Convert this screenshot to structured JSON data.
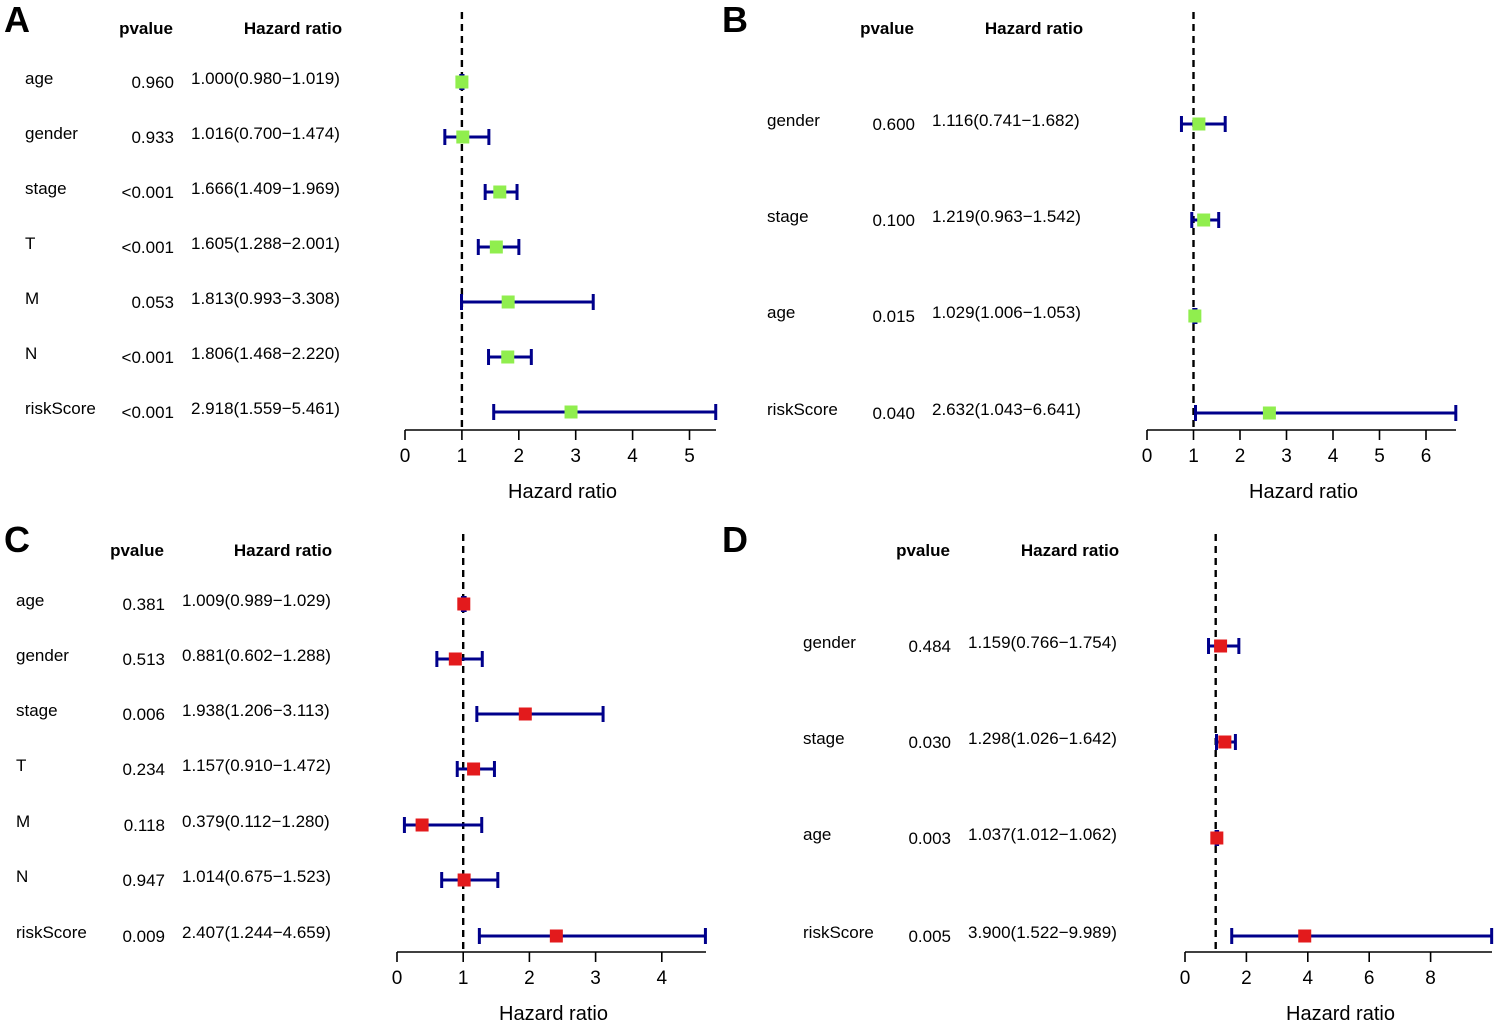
{
  "chart_data": [
    {
      "panel": "A",
      "type": "forest",
      "header_pvalue": "pvalue",
      "header_hr": "Hazard ratio",
      "xlabel": "Hazard ratio",
      "xlim": [
        0,
        5.461
      ],
      "xticks": [
        "0",
        "1",
        "2",
        "3",
        "4",
        "5"
      ],
      "reference_line": 1,
      "marker_color": "#90EE4E",
      "ci_color": "#00008B",
      "rows": [
        {
          "label": "age",
          "pvalue": "0.960",
          "hr_text": "1.000(0.980−1.019)",
          "hr": 1.0,
          "low": 0.98,
          "high": 1.019
        },
        {
          "label": "gender",
          "pvalue": "0.933",
          "hr_text": "1.016(0.700−1.474)",
          "hr": 1.016,
          "low": 0.7,
          "high": 1.474
        },
        {
          "label": "stage",
          "pvalue": "<0.001",
          "hr_text": "1.666(1.409−1.969)",
          "hr": 1.666,
          "low": 1.409,
          "high": 1.969
        },
        {
          "label": "T",
          "pvalue": "<0.001",
          "hr_text": "1.605(1.288−2.001)",
          "hr": 1.605,
          "low": 1.288,
          "high": 2.001
        },
        {
          "label": "M",
          "pvalue": "0.053",
          "hr_text": "1.813(0.993−3.308)",
          "hr": 1.813,
          "low": 0.993,
          "high": 3.308
        },
        {
          "label": "N",
          "pvalue": "<0.001",
          "hr_text": "1.806(1.468−2.220)",
          "hr": 1.806,
          "low": 1.468,
          "high": 2.22
        },
        {
          "label": "riskScore",
          "pvalue": "<0.001",
          "hr_text": "2.918(1.559−5.461)",
          "hr": 2.918,
          "low": 1.559,
          "high": 5.461
        }
      ]
    },
    {
      "panel": "B",
      "type": "forest",
      "header_pvalue": "pvalue",
      "header_hr": "Hazard ratio",
      "xlabel": "Hazard ratio",
      "xlim": [
        0,
        6.641
      ],
      "xticks": [
        "0",
        "1",
        "2",
        "3",
        "4",
        "5",
        "6"
      ],
      "reference_line": 1,
      "marker_color": "#90EE4E",
      "ci_color": "#00008B",
      "rows": [
        {
          "label": "gender",
          "pvalue": "0.600",
          "hr_text": "1.116(0.741−1.682)",
          "hr": 1.116,
          "low": 0.741,
          "high": 1.682
        },
        {
          "label": "stage",
          "pvalue": "0.100",
          "hr_text": "1.219(0.963−1.542)",
          "hr": 1.219,
          "low": 0.963,
          "high": 1.542
        },
        {
          "label": "age",
          "pvalue": "0.015",
          "hr_text": "1.029(1.006−1.053)",
          "hr": 1.029,
          "low": 1.006,
          "high": 1.053
        },
        {
          "label": "riskScore",
          "pvalue": "0.040",
          "hr_text": "2.632(1.043−6.641)",
          "hr": 2.632,
          "low": 1.043,
          "high": 6.641
        }
      ]
    },
    {
      "panel": "C",
      "type": "forest",
      "header_pvalue": "pvalue",
      "header_hr": "Hazard ratio",
      "xlabel": "Hazard ratio",
      "xlim": [
        0,
        4.659
      ],
      "xticks": [
        "0",
        "1",
        "2",
        "3",
        "4"
      ],
      "reference_line": 1,
      "marker_color": "#E31A1C",
      "ci_color": "#00008B",
      "rows": [
        {
          "label": "age",
          "pvalue": "0.381",
          "hr_text": "1.009(0.989−1.029)",
          "hr": 1.009,
          "low": 0.989,
          "high": 1.029
        },
        {
          "label": "gender",
          "pvalue": "0.513",
          "hr_text": "0.881(0.602−1.288)",
          "hr": 0.881,
          "low": 0.602,
          "high": 1.288
        },
        {
          "label": "stage",
          "pvalue": "0.006",
          "hr_text": "1.938(1.206−3.113)",
          "hr": 1.938,
          "low": 1.206,
          "high": 3.113
        },
        {
          "label": "T",
          "pvalue": "0.234",
          "hr_text": "1.157(0.910−1.472)",
          "hr": 1.157,
          "low": 0.91,
          "high": 1.472
        },
        {
          "label": "M",
          "pvalue": "0.118",
          "hr_text": "0.379(0.112−1.280)",
          "hr": 0.379,
          "low": 0.112,
          "high": 1.28
        },
        {
          "label": "N",
          "pvalue": "0.947",
          "hr_text": "1.014(0.675−1.523)",
          "hr": 1.014,
          "low": 0.675,
          "high": 1.523
        },
        {
          "label": "riskScore",
          "pvalue": "0.009",
          "hr_text": "2.407(1.244−4.659)",
          "hr": 2.407,
          "low": 1.244,
          "high": 4.659
        }
      ]
    },
    {
      "panel": "D",
      "type": "forest",
      "header_pvalue": "pvalue",
      "header_hr": "Hazard ratio",
      "xlabel": "Hazard ratio",
      "xlim": [
        0,
        9.989
      ],
      "xticks": [
        "0",
        "2",
        "4",
        "6",
        "8"
      ],
      "reference_line": 1,
      "marker_color": "#E31A1C",
      "ci_color": "#00008B",
      "rows": [
        {
          "label": "gender",
          "pvalue": "0.484",
          "hr_text": "1.159(0.766−1.754)",
          "hr": 1.159,
          "low": 0.766,
          "high": 1.754
        },
        {
          "label": "stage",
          "pvalue": "0.030",
          "hr_text": "1.298(1.026−1.642)",
          "hr": 1.298,
          "low": 1.026,
          "high": 1.642
        },
        {
          "label": "age",
          "pvalue": "0.003",
          "hr_text": "1.037(1.012−1.062)",
          "hr": 1.037,
          "low": 1.012,
          "high": 1.062
        },
        {
          "label": "riskScore",
          "pvalue": "0.005",
          "hr_text": "3.900(1.522−9.989)",
          "hr": 3.9,
          "low": 1.522,
          "high": 9.989
        }
      ]
    }
  ]
}
